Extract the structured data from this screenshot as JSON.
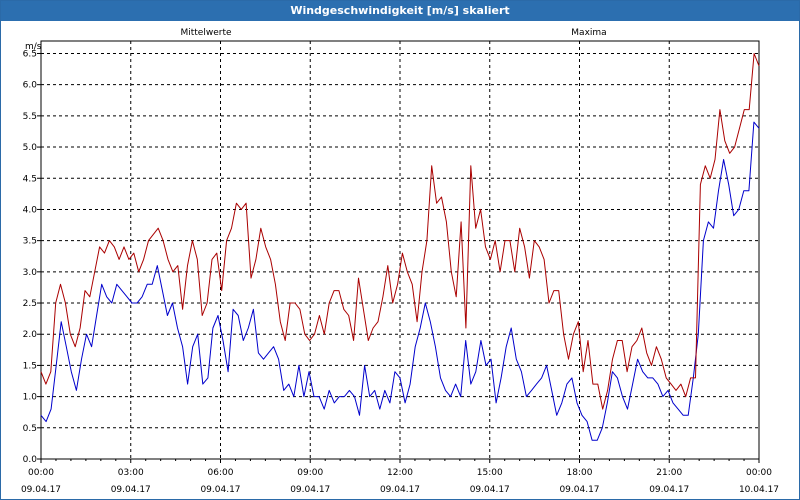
{
  "window": {
    "title": "Windgeschwindigkeit [m/s] skaliert"
  },
  "chart_data": {
    "type": "line",
    "title": "Windgeschwindigkeit [m/s] skaliert",
    "ylabel": "m/s",
    "xlabel": "",
    "ylim": [
      0,
      6.7
    ],
    "xlim_hours": [
      0,
      24
    ],
    "grid": true,
    "grid_style": "dashed",
    "legend_placement": "top",
    "y_ticks": [
      "0.0",
      "0.5",
      "1.0",
      "1.5",
      "2.0",
      "2.5",
      "3.0",
      "3.5",
      "4.0",
      "4.5",
      "5.0",
      "5.5",
      "6.0",
      "6.5"
    ],
    "x_ticks": [
      {
        "time": "00:00",
        "date": "09.04.17"
      },
      {
        "time": "03:00",
        "date": "09.04.17"
      },
      {
        "time": "06:00",
        "date": "09.04.17"
      },
      {
        "time": "09:00",
        "date": "09.04.17"
      },
      {
        "time": "12:00",
        "date": "09.04.17"
      },
      {
        "time": "15:00",
        "date": "09.04.17"
      },
      {
        "time": "18:00",
        "date": "09.04.17"
      },
      {
        "time": "21:00",
        "date": "09.04.17"
      },
      {
        "time": "00:00",
        "date": "10.04.17"
      }
    ],
    "series": [
      {
        "name": "Mittelwerte",
        "color": "#0000cc",
        "values": [
          0.7,
          0.6,
          0.8,
          1.5,
          2.2,
          1.8,
          1.4,
          1.1,
          1.6,
          2.0,
          1.8,
          2.3,
          2.8,
          2.6,
          2.5,
          2.8,
          2.7,
          2.6,
          2.5,
          2.5,
          2.6,
          2.8,
          2.8,
          3.1,
          2.7,
          2.3,
          2.5,
          2.1,
          1.8,
          1.2,
          1.8,
          2.0,
          1.2,
          1.3,
          2.1,
          2.3,
          1.9,
          1.4,
          2.4,
          2.3,
          1.9,
          2.1,
          2.4,
          1.7,
          1.6,
          1.7,
          1.8,
          1.6,
          1.1,
          1.2,
          1.0,
          1.5,
          1.0,
          1.4,
          1.0,
          1.0,
          0.8,
          1.1,
          0.9,
          1.0,
          1.0,
          1.1,
          1.0,
          0.7,
          1.5,
          1.0,
          1.1,
          0.8,
          1.1,
          0.9,
          1.4,
          1.3,
          0.9,
          1.2,
          1.8,
          2.1,
          2.5,
          2.2,
          1.8,
          1.3,
          1.1,
          1.0,
          1.2,
          1.0,
          1.9,
          1.2,
          1.4,
          1.9,
          1.5,
          1.6,
          0.9,
          1.3,
          1.8,
          2.1,
          1.6,
          1.4,
          1.0,
          1.1,
          1.2,
          1.3,
          1.5,
          1.1,
          0.7,
          0.9,
          1.2,
          1.3,
          0.9,
          0.7,
          0.6,
          0.3,
          0.3,
          0.5,
          0.9,
          1.4,
          1.3,
          1.0,
          0.8,
          1.2,
          1.6,
          1.4,
          1.3,
          1.3,
          1.2,
          1.0,
          1.1,
          0.9,
          0.8,
          0.7,
          0.7,
          1.3,
          2.0,
          3.5,
          3.8,
          3.7,
          4.3,
          4.8,
          4.4,
          3.9,
          4.0,
          4.3,
          4.3,
          5.4,
          5.3
        ]
      },
      {
        "name": "Maxima",
        "color": "#aa0000",
        "values": [
          1.4,
          1.2,
          1.4,
          2.5,
          2.8,
          2.5,
          2.0,
          1.8,
          2.1,
          2.7,
          2.6,
          3.0,
          3.4,
          3.3,
          3.5,
          3.4,
          3.2,
          3.4,
          3.2,
          3.3,
          3.0,
          3.2,
          3.5,
          3.6,
          3.7,
          3.5,
          3.2,
          3.0,
          3.1,
          2.4,
          3.1,
          3.5,
          3.2,
          2.3,
          2.5,
          3.2,
          3.3,
          2.7,
          3.5,
          3.7,
          4.1,
          4.0,
          4.1,
          2.9,
          3.2,
          3.7,
          3.4,
          3.2,
          2.8,
          2.2,
          1.9,
          2.5,
          2.5,
          2.4,
          2.0,
          1.9,
          2.0,
          2.3,
          2.0,
          2.5,
          2.7,
          2.7,
          2.4,
          2.3,
          1.9,
          2.9,
          2.4,
          1.9,
          2.1,
          2.2,
          2.6,
          3.1,
          2.5,
          2.8,
          3.3,
          3.0,
          2.8,
          2.2,
          3.0,
          3.5,
          4.7,
          4.1,
          4.2,
          3.8,
          3.0,
          2.6,
          3.8,
          2.1,
          4.7,
          3.7,
          4.0,
          3.4,
          3.2,
          3.5,
          3.0,
          3.5,
          3.5,
          3.0,
          3.7,
          3.4,
          2.9,
          3.5,
          3.4,
          3.2,
          2.5,
          2.7,
          2.7,
          2.0,
          1.6,
          2.0,
          2.2,
          1.4,
          1.9,
          1.2,
          1.2,
          0.8,
          1.1,
          1.6,
          1.9,
          1.9,
          1.4,
          1.8,
          1.9,
          2.1,
          1.7,
          1.5,
          1.8,
          1.6,
          1.3,
          1.2,
          1.1,
          1.2,
          1.0,
          1.3,
          1.3,
          4.4,
          4.7,
          4.5,
          4.8,
          5.6,
          5.1,
          4.9,
          5.0,
          5.3,
          5.6,
          5.6,
          6.5,
          6.3
        ]
      }
    ]
  }
}
